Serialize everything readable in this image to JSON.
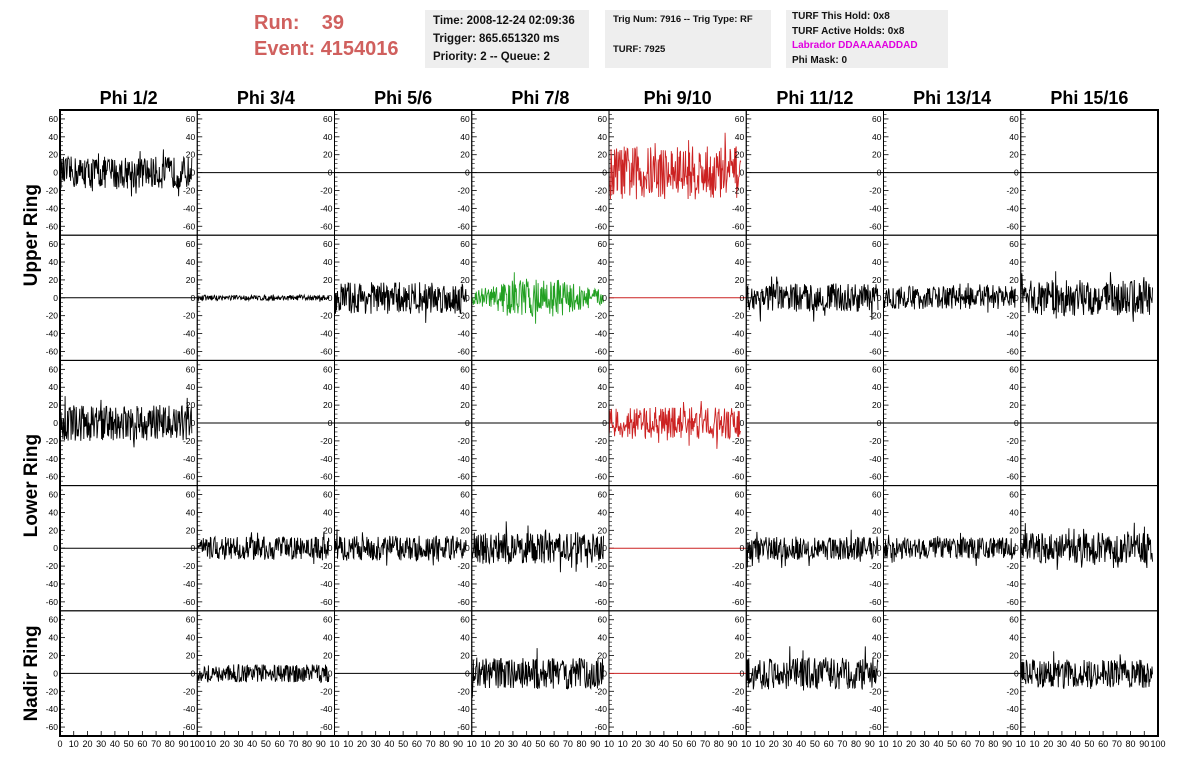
{
  "header": {
    "run_label": "Run:",
    "run_value": "39",
    "event_label": "Event:",
    "event_value": "4154016"
  },
  "info_time": {
    "time": "Time: 2008-12-24 02:09:36",
    "trigger": "Trigger: 865.651320 ms",
    "priority": "Priority: 2 -- Queue: 2"
  },
  "info_trig": {
    "trig": "Trig Num: 7916 -- Trig Type: RF",
    "turf": "TURF: 7925"
  },
  "info_turf": {
    "this_hold": "TURF This Hold: 0x8",
    "active_holds": "TURF Active Holds: 0x8",
    "labrador": "Labrador DDAAAAADDAD",
    "phi_mask": "Phi Mask: 0"
  },
  "colors": {
    "run": "#d0605e",
    "labrador": "#e000e0",
    "trace_default": "#000000",
    "trace_red": "#cc2222",
    "trace_green": "#22a022"
  },
  "chart_data": {
    "type": "line",
    "columns": [
      "Phi 1/2",
      "Phi 3/4",
      "Phi 5/6",
      "Phi 7/8",
      "Phi 9/10",
      "Phi 11/12",
      "Phi 13/14",
      "Phi 15/16"
    ],
    "ring_labels": [
      "Upper Ring",
      "Lower Ring",
      "Nadir Ring"
    ],
    "xlim": [
      0,
      100
    ],
    "ylim": [
      -70,
      70
    ],
    "yticks": [
      -60,
      -40,
      -20,
      0,
      20,
      40,
      60
    ],
    "xticks": [
      0,
      10,
      20,
      30,
      40,
      50,
      60,
      70,
      80,
      90,
      100
    ],
    "first_xtick_labels": [
      "0",
      "10",
      "20",
      "30",
      "40",
      "50",
      "60",
      "70",
      "80",
      "90",
      "100"
    ],
    "xtick_labels": [
      "10",
      "20",
      "30",
      "40",
      "50",
      "60",
      "70",
      "80",
      "90",
      "10"
    ],
    "last_xtick_labels": [
      "10",
      "20",
      "30",
      "40",
      "50",
      "60",
      "70",
      "80",
      "90",
      "100"
    ],
    "panels": [
      [
        {
          "amp": 18,
          "color": "black"
        },
        {
          "amp": 0,
          "color": "black"
        },
        {
          "amp": 0,
          "color": "black"
        },
        {
          "amp": 0,
          "color": "black"
        },
        {
          "amp": 30,
          "color": "red"
        },
        {
          "amp": 0,
          "color": "black"
        },
        {
          "amp": 0,
          "color": "black"
        },
        {
          "amp": 0,
          "color": "black"
        }
      ],
      [
        {
          "amp": 0,
          "color": "black"
        },
        {
          "amp": 3,
          "color": "black"
        },
        {
          "amp": 18,
          "color": "black"
        },
        {
          "amp": 22,
          "color": "green"
        },
        {
          "amp": 0,
          "color": "red"
        },
        {
          "amp": 16,
          "color": "black"
        },
        {
          "amp": 13,
          "color": "black"
        },
        {
          "amp": 20,
          "color": "black"
        }
      ],
      [
        {
          "amp": 20,
          "color": "black"
        },
        {
          "amp": 0,
          "color": "black"
        },
        {
          "amp": 0,
          "color": "black"
        },
        {
          "amp": 0,
          "color": "black"
        },
        {
          "amp": 18,
          "color": "red"
        },
        {
          "amp": 0,
          "color": "black"
        },
        {
          "amp": 0,
          "color": "black"
        },
        {
          "amp": 0,
          "color": "black"
        }
      ],
      [
        {
          "amp": 0,
          "color": "black"
        },
        {
          "amp": 13,
          "color": "black"
        },
        {
          "amp": 14,
          "color": "black"
        },
        {
          "amp": 18,
          "color": "black"
        },
        {
          "amp": 0,
          "color": "red"
        },
        {
          "amp": 13,
          "color": "black"
        },
        {
          "amp": 12,
          "color": "black"
        },
        {
          "amp": 17,
          "color": "black"
        }
      ],
      [
        {
          "amp": 0,
          "color": "black"
        },
        {
          "amp": 10,
          "color": "black"
        },
        {
          "amp": 0,
          "color": "black"
        },
        {
          "amp": 18,
          "color": "black"
        },
        {
          "amp": 0,
          "color": "red"
        },
        {
          "amp": 18,
          "color": "black"
        },
        {
          "amp": 0,
          "color": "black"
        },
        {
          "amp": 16,
          "color": "black"
        }
      ]
    ]
  }
}
